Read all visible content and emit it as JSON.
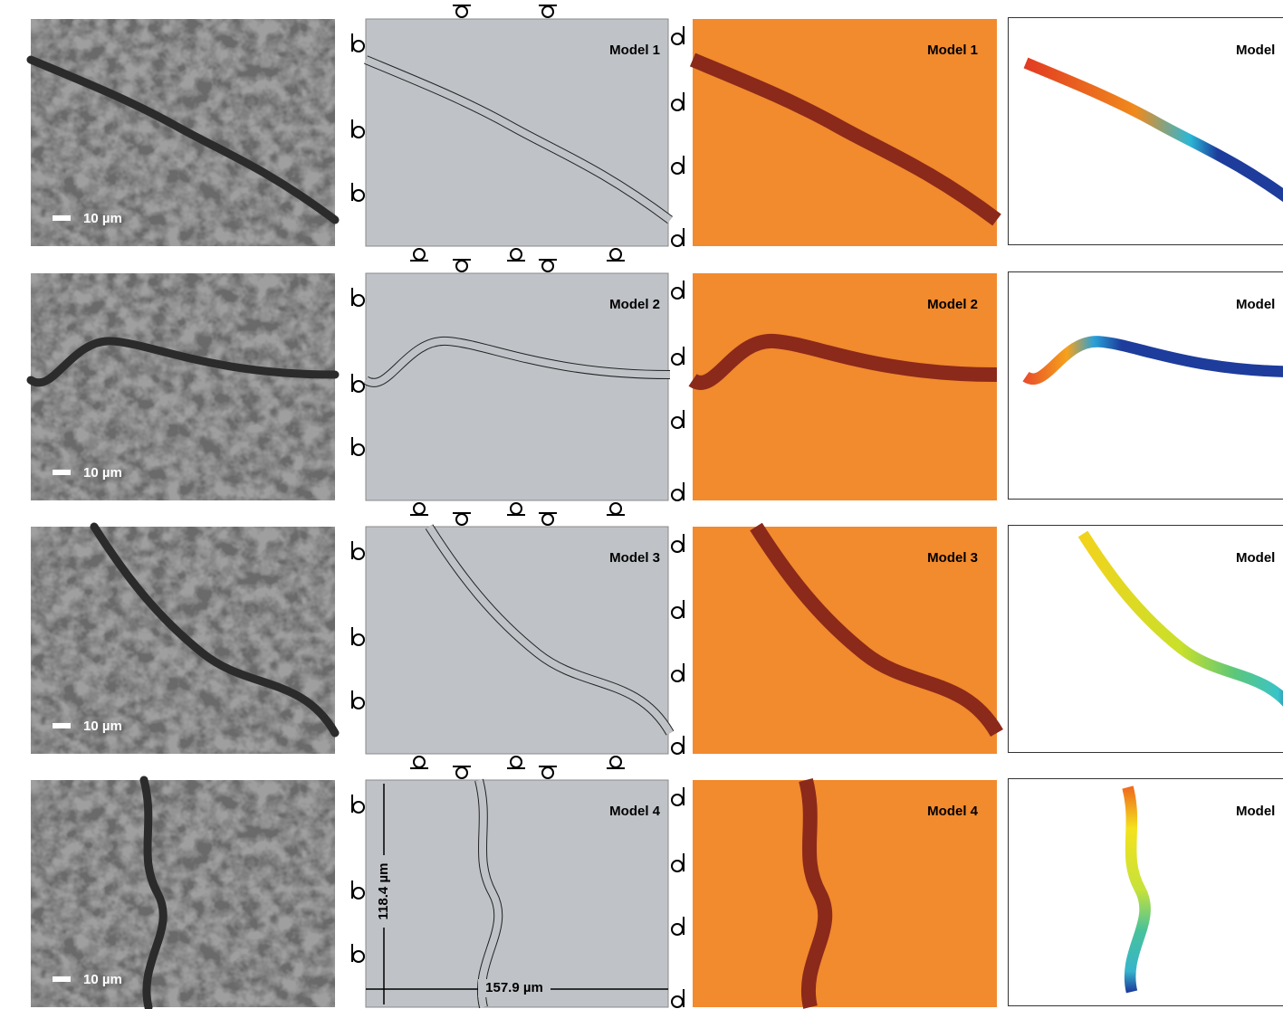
{
  "rows": [
    {
      "scale_bar": "10 µm",
      "mesh_label": "Model 1",
      "field_label": "Model 1",
      "result_label": "Model"
    },
    {
      "scale_bar": "10 µm",
      "mesh_label": "Model 2",
      "field_label": "Model 2",
      "result_label": "Model"
    },
    {
      "scale_bar": "10 µm",
      "mesh_label": "Model 3",
      "field_label": "Model 3",
      "result_label": "Model"
    },
    {
      "scale_bar": "10 µm",
      "mesh_label": "Model 4",
      "field_label": "Model 4",
      "result_label": "Model"
    }
  ],
  "dimensions": {
    "height": "118.4 µm",
    "width": "157.9 µm"
  }
}
